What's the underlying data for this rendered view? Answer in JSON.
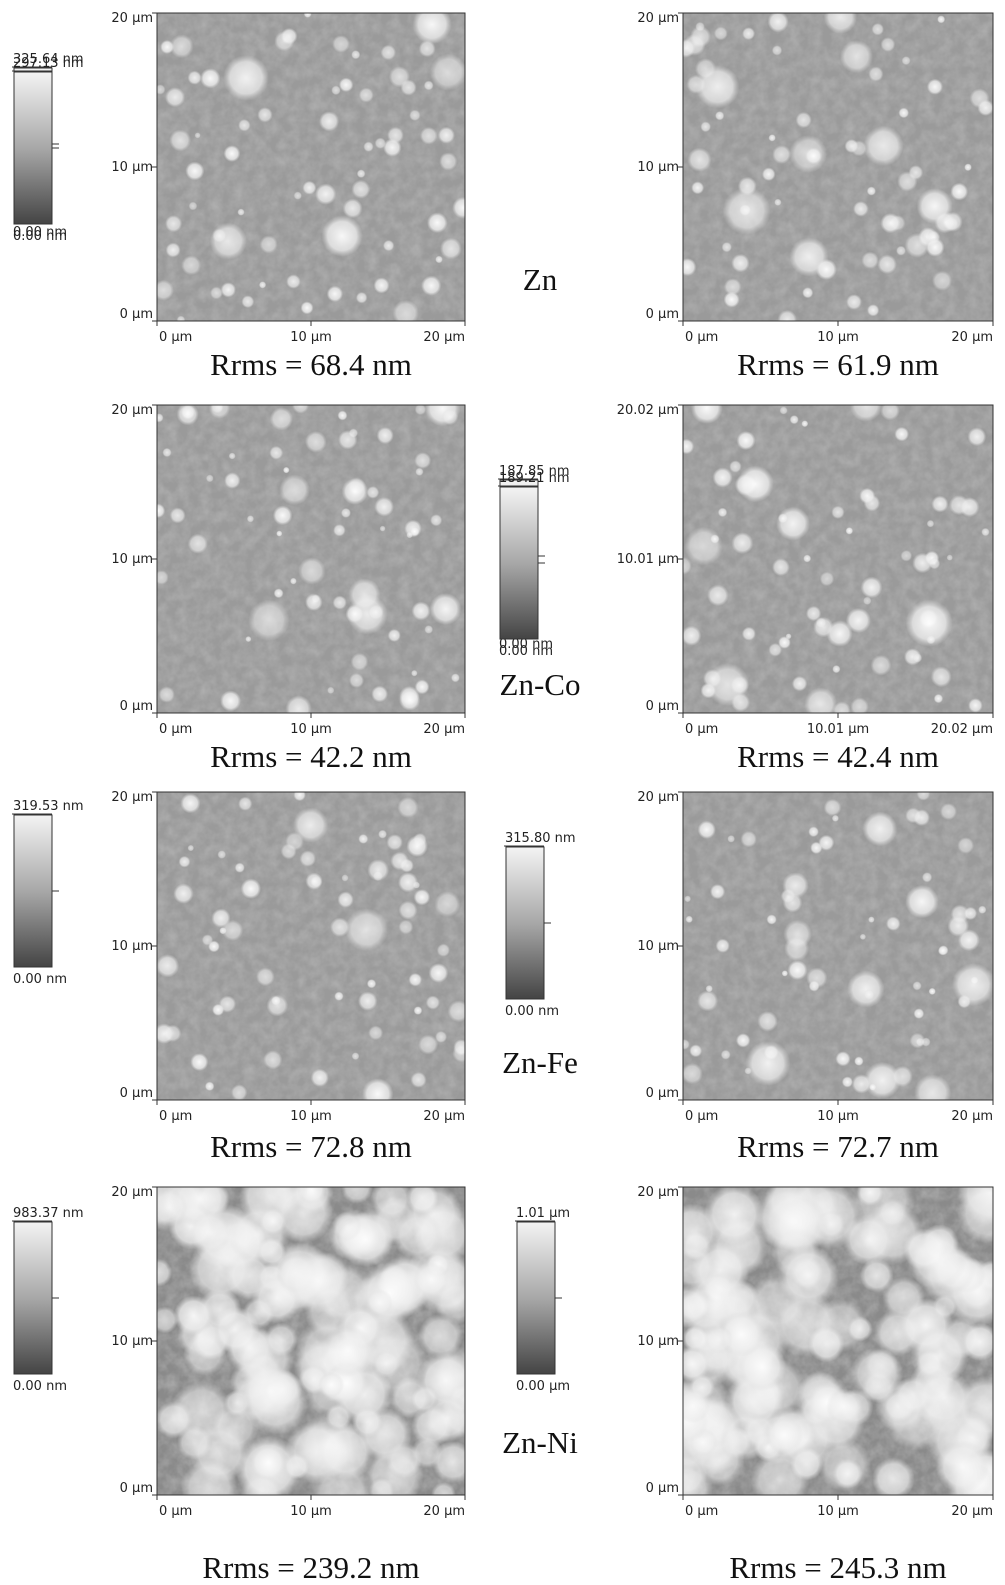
{
  "rows": [
    {
      "label": "Zn",
      "panels": [
        {
          "scale_max": "325.64 nm",
          "scale_min": "0.00 nm",
          "y_ticks": [
            "20 µm",
            "10 µm",
            "0 µm"
          ],
          "x_ticks": [
            "0 µm",
            "10 µm",
            "20 µm"
          ],
          "rrms": "Rrms = 68.4 nm"
        },
        {
          "scale_max": "297.13 nm",
          "scale_min": "0.00 nm",
          "y_ticks": [
            "20 µm",
            "10 µm",
            "0 µm"
          ],
          "x_ticks": [
            "0 µm",
            "10 µm",
            "20 µm"
          ],
          "rrms": "Rrms = 61.9 nm"
        }
      ]
    },
    {
      "label": "Zn-Co",
      "panels": [
        {
          "scale_max": "187.85 nm",
          "scale_min": "0.00 nm",
          "y_ticks": [
            "20 µm",
            "10 µm",
            "0 µm"
          ],
          "x_ticks": [
            "0 µm",
            "10 µm",
            "20 µm"
          ],
          "rrms": "Rrms = 42.2 nm"
        },
        {
          "scale_max": "189.21 nm",
          "scale_min": "0.00 nm",
          "y_ticks": [
            "20.02 µm",
            "10.01 µm",
            "0 µm"
          ],
          "x_ticks": [
            "0 µm",
            "10.01 µm",
            "20.02 µm"
          ],
          "rrms": "Rrms = 42.4 nm"
        }
      ]
    },
    {
      "label": "Zn-Fe",
      "panels": [
        {
          "scale_max": "319.53 nm",
          "scale_min": "0.00 nm",
          "y_ticks": [
            "20 µm",
            "10 µm",
            "0 µm"
          ],
          "x_ticks": [
            "0 µm",
            "10 µm",
            "20 µm"
          ],
          "rrms": "Rrms = 72.8 nm"
        },
        {
          "scale_max": "315.80 nm",
          "scale_min": "0.00 nm",
          "y_ticks": [
            "20 µm",
            "10 µm",
            "0 µm"
          ],
          "x_ticks": [
            "0 µm",
            "10 µm",
            "20 µm"
          ],
          "rrms": "Rrms = 72.7 nm"
        }
      ]
    },
    {
      "label": "Zn-Ni",
      "panels": [
        {
          "scale_max": "983.37 nm",
          "scale_min": "0.00 nm",
          "y_ticks": [
            "20 µm",
            "10 µm",
            "0 µm"
          ],
          "x_ticks": [
            "0 µm",
            "10 µm",
            "20 µm"
          ],
          "rrms": "Rrms = 239.2 nm"
        },
        {
          "scale_max": "1.01 µm",
          "scale_min": "0.00 µm",
          "y_ticks": [
            "20 µm",
            "10 µm",
            "0 µm"
          ],
          "x_ticks": [
            "0 µm",
            "10 µm",
            "20 µm"
          ],
          "rrms": "Rrms = 245.3 nm"
        }
      ]
    }
  ]
}
